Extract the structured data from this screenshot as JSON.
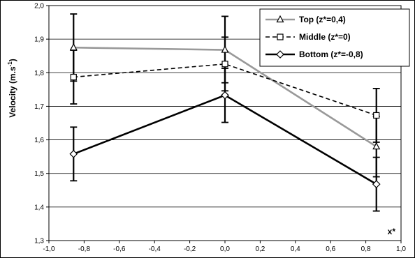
{
  "chart_data": {
    "type": "line",
    "title": "",
    "xlabel": "x*",
    "ylabel": "Velocity (m.s",
    "ylabel_sup": "-1",
    "ylabel_close": ")",
    "xlim": [
      -1.0,
      1.0
    ],
    "ylim": [
      1.3,
      2.0
    ],
    "x_ticks": [
      -1.0,
      -0.8,
      -0.6,
      -0.4,
      -0.2,
      0.0,
      0.2,
      0.4,
      0.6,
      0.8,
      1.0
    ],
    "x_tick_labels": [
      "-1,0",
      "-0,8",
      "-0,6",
      "-0,4",
      "-0,2",
      "0,0",
      "0,2",
      "0,4",
      "0,6",
      "0,8",
      "1,0"
    ],
    "y_ticks": [
      1.3,
      1.4,
      1.5,
      1.6,
      1.7,
      1.8,
      1.9,
      2.0
    ],
    "y_tick_labels": [
      "1,3",
      "1,4",
      "1,5",
      "1,6",
      "1,7",
      "1,8",
      "1,9",
      "2,0"
    ],
    "grid": "horizontal",
    "legend_position": "top-right",
    "series": [
      {
        "name": "Top (z*=0,4)",
        "marker": "triangle",
        "color": "#999999",
        "dash": "solid",
        "x": [
          -0.86,
          0.0,
          0.86
        ],
        "y": [
          1.875,
          1.868,
          1.58
        ],
        "err_low": [
          1.775,
          1.77,
          1.49
        ],
        "err_high": [
          1.975,
          1.968,
          1.67
        ]
      },
      {
        "name": "Middle (z*=0)",
        "marker": "square",
        "color": "#000000",
        "dash": "dashed",
        "x": [
          -0.86,
          0.0,
          0.86
        ],
        "y": [
          1.787,
          1.826,
          1.673
        ],
        "err_low": [
          1.707,
          1.746,
          1.593
        ],
        "err_high": [
          1.867,
          1.906,
          1.753
        ]
      },
      {
        "name": "Bottom (z*=-0,8)",
        "marker": "diamond",
        "color": "#000000",
        "dash": "solid",
        "x": [
          -0.86,
          0.0,
          0.86
        ],
        "y": [
          1.558,
          1.733,
          1.468
        ],
        "err_low": [
          1.478,
          1.652,
          1.388
        ],
        "err_high": [
          1.638,
          1.813,
          1.548
        ]
      }
    ]
  }
}
